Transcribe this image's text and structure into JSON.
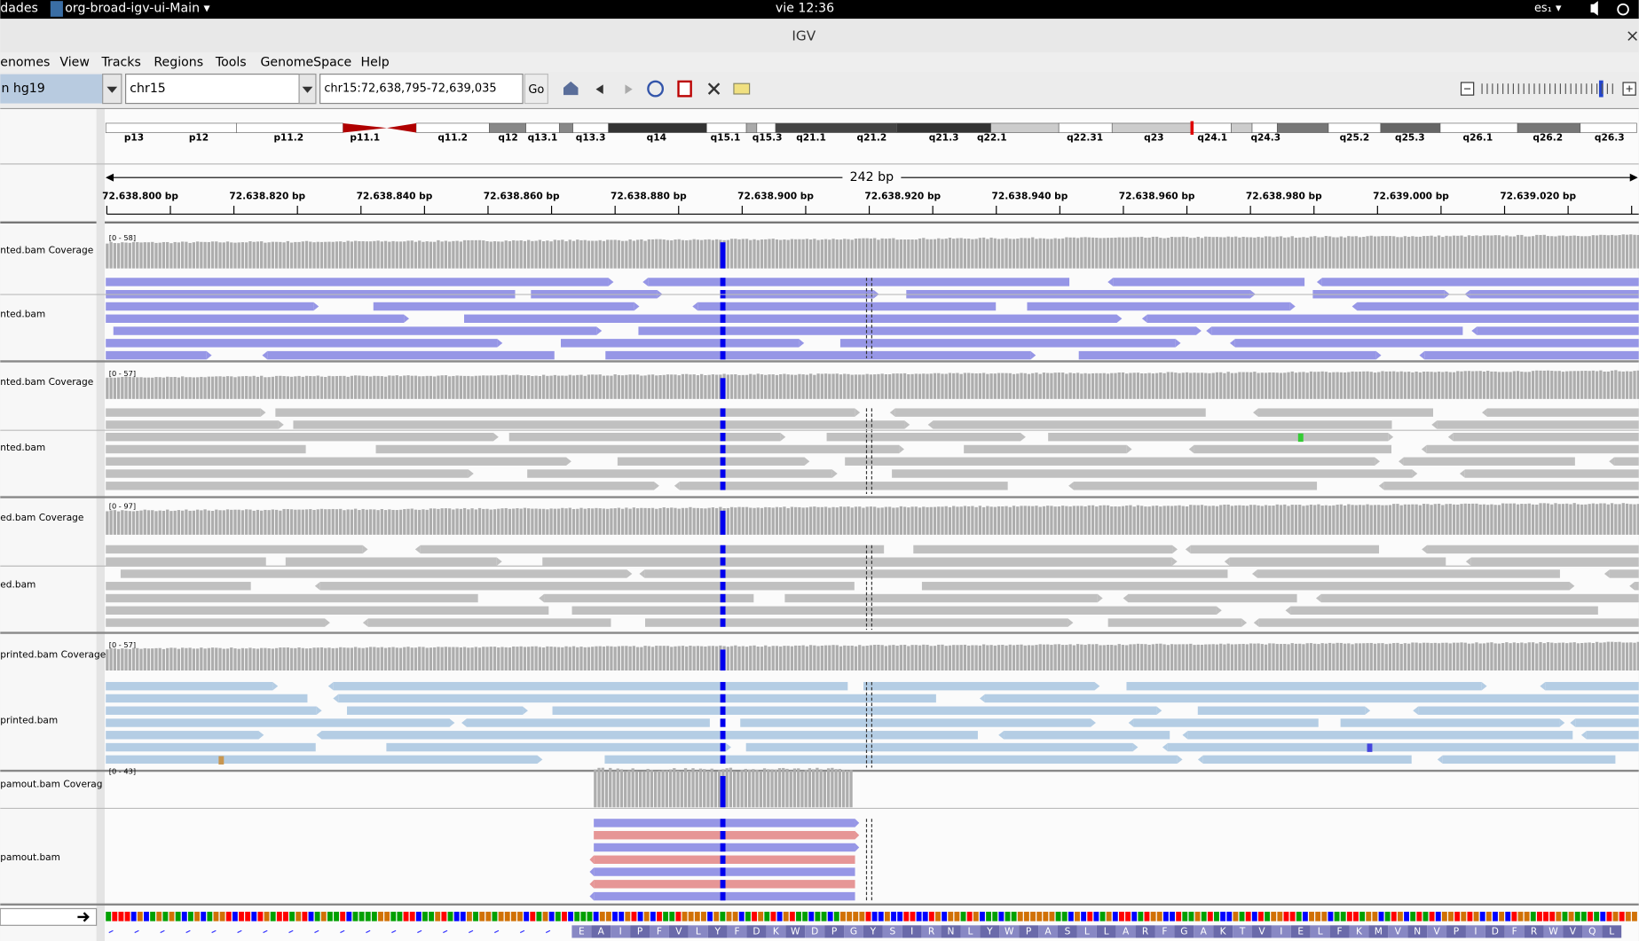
{
  "system_bar": {
    "activities": "dades",
    "app": "org-broad-igv-ui-Main ▾",
    "clock": "vie 12:36",
    "keyboard": "es₁ ▾"
  },
  "window": {
    "title": "IGV",
    "close": "×"
  },
  "menu": [
    "enomes",
    "View",
    "Tracks",
    "Regions",
    "Tools",
    "GenomeSpace",
    "Help"
  ],
  "toolbar": {
    "genome": "n hg19",
    "chromosome": "chr15",
    "locus": "chr15:72,638,795-72,639,035",
    "go": "Go"
  },
  "ideogram": {
    "bands": [
      "p13",
      "p12",
      "p11.2",
      "p11.1",
      "q11.2",
      "q12",
      "q13.1",
      "q13.3",
      "q14",
      "q15.1",
      "q15.3",
      "q21.1",
      "q21.2",
      "q21.3",
      "q22.1",
      "q22.31",
      "q23",
      "q24.1",
      "q24.3",
      "q25.2",
      "q25.3",
      "q26.1",
      "q26.2",
      "q26.3"
    ]
  },
  "ruler": {
    "span": "242 bp",
    "positions": [
      "72.638.800 bp",
      "72.638.820 bp",
      "72.638.840 bp",
      "72.638.860 bp",
      "72.638.880 bp",
      "72.638.900 bp",
      "72.638.920 bp",
      "72.638.940 bp",
      "72.638.960 bp",
      "72.638.980 bp",
      "72.639.000 bp",
      "72.639.020 bp"
    ]
  },
  "tracks": [
    {
      "coverage_name": "nted.bam Coverage",
      "range": "[0 - 58]",
      "alignment_name": "nted.bam"
    },
    {
      "coverage_name": "nted.bam Coverage",
      "range": "[0 - 57]",
      "alignment_name": "nted.bam"
    },
    {
      "coverage_name": "ed.bam Coverage",
      "range": "[0 - 97]",
      "alignment_name": "ed.bam"
    },
    {
      "coverage_name": "printed.bam Coverage",
      "range": "[0 - 57]",
      "alignment_name": "printed.bam"
    },
    {
      "coverage_name": "pamout.bam Coverag",
      "range": "[0 - 43]",
      "alignment_name": "pamout.bam"
    }
  ],
  "sequence": {
    "amino_acids": [
      "E",
      "A",
      "I",
      "P",
      "F",
      "V",
      "L",
      "Y",
      "F",
      "D",
      "K",
      "W",
      "D",
      "P",
      "G",
      "Y",
      "S",
      "I",
      "R",
      "N",
      "L",
      "Y",
      "W",
      "P",
      "A",
      "S",
      "L",
      "L",
      "A",
      "R",
      "F",
      "G",
      "A",
      "K",
      "T",
      "V",
      "I",
      "E",
      "L",
      "F",
      "K",
      "M",
      "V",
      "N",
      "V",
      "P",
      "I",
      "D",
      "F",
      "R",
      "W",
      "V",
      "Q",
      "L"
    ]
  }
}
